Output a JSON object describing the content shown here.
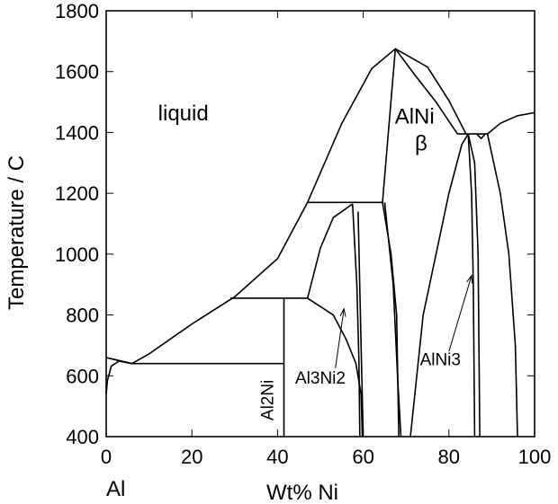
{
  "chart_data": {
    "type": "phase-diagram",
    "title": "",
    "xlabel": "Wt% Ni",
    "ylabel": "Temperature / C",
    "xlim": [
      0,
      100
    ],
    "ylim": [
      400,
      1800
    ],
    "x_ticks": [
      "0",
      "20",
      "40",
      "60",
      "80",
      "100"
    ],
    "y_ticks": [
      "400",
      "600",
      "800",
      "1000",
      "1200",
      "1400",
      "1600",
      "1800"
    ],
    "corner_label": "Al",
    "regions": [
      {
        "label": "liquid",
        "x": 18,
        "y": 1440
      },
      {
        "label": "AlNi",
        "x": 72,
        "y": 1430
      },
      {
        "label": "β",
        "x": 73.5,
        "y": 1340
      },
      {
        "label": "Al2Ni",
        "x": 39,
        "y": 520,
        "rotate": true
      },
      {
        "label": "Al3Ni2",
        "x": 50,
        "y": 575
      },
      {
        "label": "AlNi3",
        "x": 78,
        "y": 635
      }
    ],
    "annotation_arrows": [
      {
        "from": [
          53.5,
          625
        ],
        "to": [
          55.5,
          820
        ]
      },
      {
        "from": [
          80,
          680
        ],
        "to": [
          85.3,
          930
        ]
      }
    ],
    "boundaries": [
      {
        "name": "liquidus",
        "points": [
          [
            0,
            660
          ],
          [
            3.5,
            648
          ],
          [
            6,
            640
          ],
          [
            10,
            672
          ],
          [
            20,
            770
          ],
          [
            30,
            860
          ],
          [
            40,
            985
          ],
          [
            47,
            1170
          ],
          [
            55,
            1430
          ],
          [
            62,
            1610
          ],
          [
            67.5,
            1675
          ],
          [
            75,
            1615
          ],
          [
            80,
            1505
          ],
          [
            84,
            1395
          ]
        ]
      },
      {
        "name": "liquidus-right",
        "points": [
          [
            89,
            1395
          ],
          [
            92,
            1430
          ],
          [
            96,
            1455
          ],
          [
            100,
            1465
          ]
        ]
      },
      {
        "name": "al-solvus",
        "points": [
          [
            0,
            540
          ],
          [
            0.3,
            585
          ],
          [
            1.2,
            632
          ],
          [
            3,
            648
          ],
          [
            6,
            640
          ]
        ]
      },
      {
        "name": "al-solidus",
        "points": [
          [
            0,
            660
          ],
          [
            6,
            640
          ]
        ]
      },
      {
        "name": "eutectic-640",
        "points": [
          [
            6,
            640
          ],
          [
            41.5,
            640
          ]
        ]
      },
      {
        "name": "peritectic-855",
        "points": [
          [
            29,
            855
          ],
          [
            47,
            855
          ]
        ]
      },
      {
        "name": "peritectic-1135",
        "points": [
          [
            47,
            1170
          ],
          [
            64.5,
            1170
          ]
        ]
      },
      {
        "name": "al2ni-line",
        "points": [
          [
            41.5,
            400
          ],
          [
            41.5,
            855
          ]
        ]
      },
      {
        "name": "al3ni2-left",
        "points": [
          [
            47,
            855
          ],
          [
            50,
            1020
          ],
          [
            53,
            1120
          ],
          [
            57.5,
            1165
          ]
        ]
      },
      {
        "name": "al3ni2-right-a",
        "points": [
          [
            57.5,
            1165
          ],
          [
            58.5,
            900
          ],
          [
            59,
            650
          ],
          [
            59.2,
            400
          ]
        ]
      },
      {
        "name": "al3ni2-right-b",
        "points": [
          [
            58.8,
            1140
          ],
          [
            59.5,
            700
          ],
          [
            60,
            400
          ]
        ]
      },
      {
        "name": "al3ni2-boundary",
        "points": [
          [
            47,
            855
          ],
          [
            53,
            800
          ],
          [
            56,
            720
          ],
          [
            58.3,
            640
          ],
          [
            59.5,
            540
          ],
          [
            59.8,
            400
          ]
        ]
      },
      {
        "name": "beta-solidus",
        "points": [
          [
            64.5,
            1170
          ],
          [
            67.5,
            1675
          ]
        ]
      },
      {
        "name": "beta-left-solvus",
        "points": [
          [
            64.5,
            1170
          ],
          [
            66.5,
            1000
          ],
          [
            67.8,
            800
          ],
          [
            68.3,
            400
          ]
        ]
      },
      {
        "name": "beta-left-solvus-2",
        "points": [
          [
            65,
            1170
          ],
          [
            67,
            900
          ],
          [
            68,
            600
          ],
          [
            68.8,
            400
          ]
        ]
      },
      {
        "name": "beta-right-solidus",
        "points": [
          [
            67.5,
            1675
          ],
          [
            72,
            1590
          ],
          [
            77,
            1500
          ],
          [
            82,
            1395
          ]
        ]
      },
      {
        "name": "peritectic-1395",
        "points": [
          [
            82,
            1395
          ],
          [
            89,
            1395
          ]
        ]
      },
      {
        "name": "beta-right-solvus",
        "points": [
          [
            71,
            400
          ],
          [
            74,
            800
          ],
          [
            77,
            1000
          ],
          [
            80,
            1200
          ],
          [
            83,
            1360
          ],
          [
            84.5,
            1395
          ]
        ]
      },
      {
        "name": "alni3-left",
        "points": [
          [
            84.5,
            1395
          ],
          [
            85.3,
            1200
          ],
          [
            85.7,
            900
          ],
          [
            86,
            400
          ]
        ]
      },
      {
        "name": "alni3-right",
        "points": [
          [
            84.5,
            1395
          ],
          [
            86,
            1300
          ],
          [
            86.8,
            1000
          ],
          [
            87.2,
            400
          ]
        ]
      },
      {
        "name": "alni3-nickel",
        "points": [
          [
            86.5,
            1395
          ],
          [
            87.5,
            1380
          ],
          [
            88.5,
            1395
          ]
        ]
      },
      {
        "name": "ni-solvus",
        "points": [
          [
            89,
            1395
          ],
          [
            92,
            1200
          ],
          [
            94,
            1000
          ],
          [
            95.5,
            700
          ],
          [
            96,
            400
          ]
        ]
      }
    ]
  }
}
